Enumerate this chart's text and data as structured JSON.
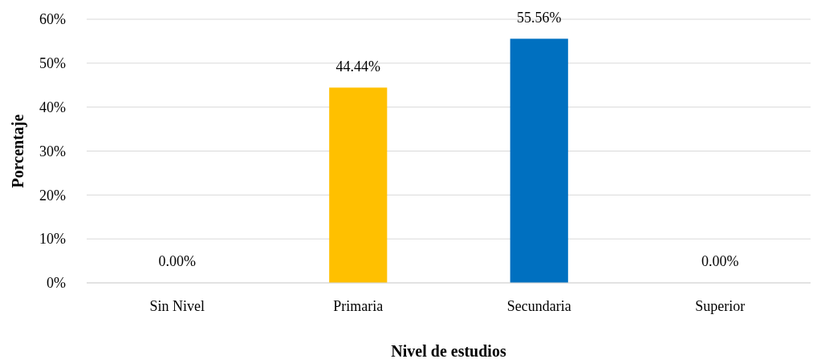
{
  "chart_data": {
    "type": "bar",
    "xlabel": "Nivel de estudios",
    "ylabel": "Porcentaje",
    "categories": [
      "Sin Nivel",
      "Primaria",
      "Secundaria",
      "Superior"
    ],
    "values": [
      0,
      44.44,
      55.56,
      0
    ],
    "colors": [
      "#4472c4",
      "#ffc000",
      "#0070c0",
      "#70ad47"
    ],
    "value_labels": [
      "0.00%",
      "44.44%",
      "55.56%",
      "0.00%"
    ],
    "ylim": [
      0,
      60
    ],
    "yticks": [
      {
        "value": 0,
        "label": "0%"
      },
      {
        "value": 10,
        "label": "10%"
      },
      {
        "value": 20,
        "label": "20%"
      },
      {
        "value": 30,
        "label": "30%"
      },
      {
        "value": 40,
        "label": "40%"
      },
      {
        "value": 50,
        "label": "50%"
      },
      {
        "value": 60,
        "label": "60%"
      }
    ],
    "grid": "y"
  }
}
